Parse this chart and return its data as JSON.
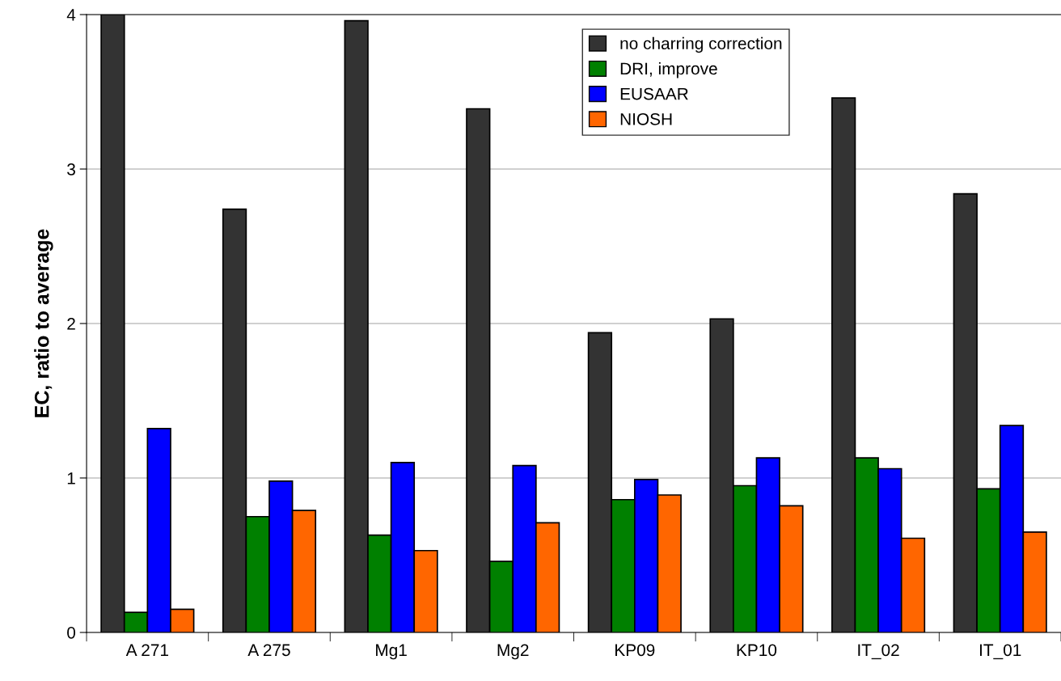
{
  "chart_data": {
    "type": "bar",
    "ylabel": "EC, ratio to average",
    "categories": [
      "A 271",
      "A 275",
      "Mg1",
      "Mg2",
      "KP09",
      "KP10",
      "IT_02",
      "IT_01"
    ],
    "series": [
      {
        "name": "no charring correction",
        "color": "#333333",
        "values": [
          4.0,
          2.74,
          3.96,
          3.39,
          1.94,
          2.03,
          3.46,
          2.84
        ]
      },
      {
        "name": "DRI, improve",
        "color": "#008000",
        "values": [
          0.13,
          0.75,
          0.63,
          0.46,
          0.86,
          0.95,
          1.13,
          0.93
        ]
      },
      {
        "name": "EUSAAR",
        "color": "#0000ff",
        "values": [
          1.32,
          0.98,
          1.1,
          1.08,
          0.99,
          1.13,
          1.06,
          1.34
        ]
      },
      {
        "name": "NIOSH",
        "color": "#ff6600",
        "values": [
          0.15,
          0.79,
          0.53,
          0.71,
          0.89,
          0.82,
          0.61,
          0.65
        ]
      }
    ],
    "ylim": [
      0,
      4
    ],
    "yticks": [
      0,
      1,
      2,
      3,
      4
    ],
    "grid": "y",
    "legend": "top"
  }
}
